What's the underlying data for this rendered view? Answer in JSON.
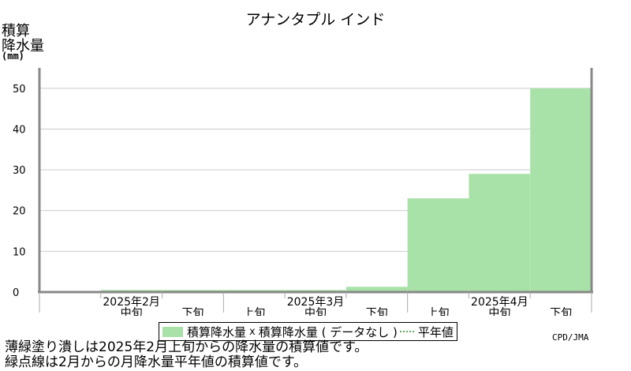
{
  "header": {
    "title": "アナンタプル インド",
    "ylabel_lines": [
      "積算",
      "降水量"
    ],
    "unit": "(mm)"
  },
  "chart_data": {
    "type": "area",
    "title": "アナンタプル インド",
    "ylabel": "積算降水量 (mm)",
    "ylim": [
      0,
      55
    ],
    "yticks": [
      0,
      10,
      20,
      30,
      40,
      50
    ],
    "grid": true,
    "periods": [
      "2025年2月 上旬",
      "2025年2月 中旬",
      "2025年2月 下旬",
      "2025年3月 上旬",
      "2025年3月 中旬",
      "2025年3月 下旬",
      "2025年4月 上旬",
      "2025年4月 中旬",
      "2025年4月 下旬"
    ],
    "period_labels": [
      "",
      "中旬",
      "下旬",
      "上旬",
      "中旬",
      "下旬",
      "上旬",
      "中旬",
      "下旬"
    ],
    "month_labels": [
      {
        "label": "2025年2月",
        "period_index": 1
      },
      {
        "label": "2025年3月",
        "period_index": 4
      },
      {
        "label": "2025年4月",
        "period_index": 7
      }
    ],
    "series": [
      {
        "name": "積算降水量",
        "values": [
          null,
          0.5,
          0.5,
          0.5,
          0.5,
          1.3,
          23.0,
          29.0,
          50.0
        ],
        "color": "#a9e2a9"
      }
    ]
  },
  "legend": {
    "series_label": "積算降水量",
    "marker": "x",
    "missing_label": "積算降水量 ( データなし )",
    "normal_label": "平年値"
  },
  "footer": {
    "credit": "CPD/JMA",
    "note1": "薄緑塗り潰しは2025年2月上旬からの降水量の積算値です。",
    "note2": "緑点線は2月からの月降水量平年値の積算値です。"
  }
}
